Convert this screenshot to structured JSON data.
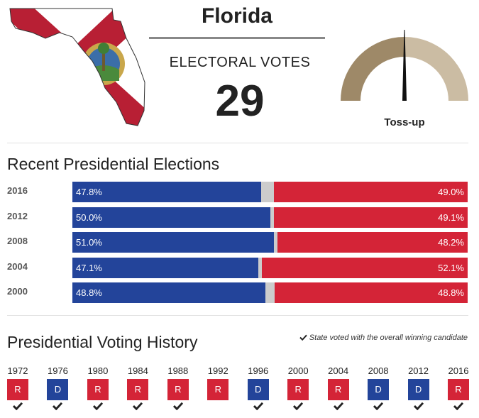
{
  "header": {
    "state": "Florida",
    "electoral_label": "ELECTORAL VOTES",
    "electoral_votes": "29",
    "rating": "Toss-up"
  },
  "colors": {
    "dem": "#23449a",
    "rep": "#d42437",
    "other": "#cccccc",
    "gauge_left": "#9e8968",
    "gauge_right": "#cbbca3"
  },
  "recent": {
    "title": "Recent Presidential Elections",
    "rows": [
      {
        "year": "2016",
        "dem": 47.8,
        "rep": 49.0,
        "dem_label": "47.8%",
        "rep_label": "49.0%"
      },
      {
        "year": "2012",
        "dem": 50.0,
        "rep": 49.1,
        "dem_label": "50.0%",
        "rep_label": "49.1%"
      },
      {
        "year": "2008",
        "dem": 51.0,
        "rep": 48.2,
        "dem_label": "51.0%",
        "rep_label": "48.2%"
      },
      {
        "year": "2004",
        "dem": 47.1,
        "rep": 52.1,
        "dem_label": "47.1%",
        "rep_label": "52.1%"
      },
      {
        "year": "2000",
        "dem": 48.8,
        "rep": 48.8,
        "dem_label": "48.8%",
        "rep_label": "48.8%"
      }
    ]
  },
  "history": {
    "title": "Presidential Voting History",
    "note": "State voted with the overall winning candidate",
    "items": [
      {
        "year": "1972",
        "party": "R",
        "winner": true
      },
      {
        "year": "1976",
        "party": "D",
        "winner": true
      },
      {
        "year": "1980",
        "party": "R",
        "winner": true
      },
      {
        "year": "1984",
        "party": "R",
        "winner": true
      },
      {
        "year": "1988",
        "party": "R",
        "winner": true
      },
      {
        "year": "1992",
        "party": "R",
        "winner": false
      },
      {
        "year": "1996",
        "party": "D",
        "winner": true
      },
      {
        "year": "2000",
        "party": "R",
        "winner": true
      },
      {
        "year": "2004",
        "party": "R",
        "winner": true
      },
      {
        "year": "2008",
        "party": "D",
        "winner": true
      },
      {
        "year": "2012",
        "party": "D",
        "winner": true
      },
      {
        "year": "2016",
        "party": "R",
        "winner": true
      }
    ]
  }
}
